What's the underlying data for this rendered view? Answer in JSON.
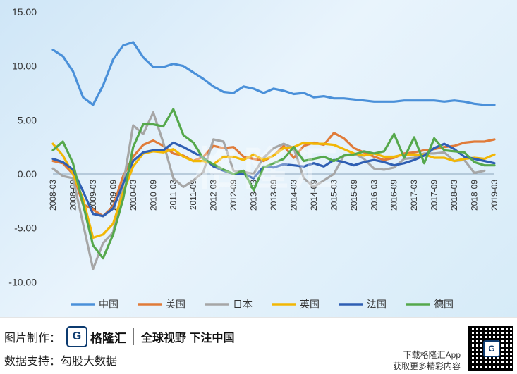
{
  "chart_data": {
    "type": "line",
    "ylim": [
      -10,
      15
    ],
    "yticks": [
      "15.00",
      "10.00",
      "5.00",
      "0.00",
      "-5.00",
      "-10.00"
    ],
    "x": [
      "2008-03",
      "2008-06",
      "2008-09",
      "2008-12",
      "2009-03",
      "2009-06",
      "2009-09",
      "2009-12",
      "2010-03",
      "2010-06",
      "2010-09",
      "2010-12",
      "2011-03",
      "2011-06",
      "2011-09",
      "2011-12",
      "2012-03",
      "2012-06",
      "2012-09",
      "2012-12",
      "2013-03",
      "2013-06",
      "2013-09",
      "2013-12",
      "2014-03",
      "2014-06",
      "2014-09",
      "2014-12",
      "2015-03",
      "2015-06",
      "2015-09",
      "2015-12",
      "2016-03",
      "2016-06",
      "2016-09",
      "2016-12",
      "2017-03",
      "2017-06",
      "2017-09",
      "2017-12",
      "2018-03",
      "2018-06",
      "2018-09",
      "2018-12",
      "2019-03"
    ],
    "xticks": [
      "2008-03",
      "2008-09",
      "2009-03",
      "2009-09",
      "2010-03",
      "2010-09",
      "2011-03",
      "2011-09",
      "2012-03",
      "2012-09",
      "2013-03",
      "2013-09",
      "2014-03",
      "2014-09",
      "2015-03",
      "2015-09",
      "2016-03",
      "2016-09",
      "2017-03",
      "2017-09",
      "2018-03",
      "2018-09",
      "2019-03"
    ],
    "grid": false,
    "legend_position": "bottom",
    "series": [
      {
        "name": "中国",
        "color": "#4a90d9",
        "values": [
          11.5,
          10.9,
          9.5,
          7.1,
          6.4,
          8.2,
          10.6,
          11.9,
          12.2,
          10.8,
          9.9,
          9.9,
          10.2,
          10.0,
          9.4,
          8.8,
          8.1,
          7.6,
          7.5,
          8.1,
          7.9,
          7.5,
          7.9,
          7.7,
          7.4,
          7.5,
          7.1,
          7.2,
          7.0,
          7.0,
          6.9,
          6.8,
          6.7,
          6.7,
          6.7,
          6.8,
          6.8,
          6.8,
          6.8,
          6.7,
          6.8,
          6.7,
          6.5,
          6.4,
          6.4
        ]
      },
      {
        "name": "美国",
        "color": "#e07b39",
        "values": [
          1.2,
          1.0,
          0.0,
          -2.8,
          -3.3,
          -3.9,
          -3.0,
          -0.2,
          1.6,
          2.7,
          3.1,
          2.6,
          1.9,
          1.7,
          1.2,
          1.6,
          2.6,
          2.4,
          2.5,
          1.6,
          1.4,
          1.2,
          1.7,
          2.6,
          1.5,
          2.6,
          2.9,
          2.7,
          3.8,
          3.3,
          2.4,
          2.0,
          1.6,
          1.3,
          1.5,
          1.9,
          2.0,
          2.2,
          2.3,
          2.5,
          2.6,
          2.9,
          3.0,
          3.0,
          3.2
        ]
      },
      {
        "name": "日本",
        "color": "#a6a6a6",
        "values": [
          0.5,
          -0.2,
          -0.4,
          -4.6,
          -8.8,
          -6.4,
          -5.4,
          -1.0,
          4.5,
          3.7,
          5.7,
          2.9,
          -0.4,
          -1.2,
          -0.6,
          0.2,
          3.2,
          3.0,
          0.3,
          0.2,
          0.0,
          1.5,
          2.4,
          2.8,
          2.4,
          -0.4,
          -1.2,
          -0.6,
          0.0,
          1.7,
          1.9,
          1.4,
          0.5,
          0.4,
          0.6,
          1.4,
          1.5,
          1.9,
          1.9,
          2.0,
          1.2,
          1.3,
          0.1,
          0.3,
          null
        ]
      },
      {
        "name": "英国",
        "color": "#f2b705",
        "values": [
          2.8,
          1.7,
          0.0,
          -2.3,
          -5.9,
          -5.6,
          -4.6,
          -1.7,
          0.7,
          1.9,
          2.1,
          2.0,
          2.3,
          1.6,
          1.2,
          1.2,
          0.9,
          1.6,
          1.6,
          1.3,
          1.8,
          1.3,
          1.7,
          2.4,
          2.5,
          2.9,
          2.8,
          2.8,
          2.7,
          2.3,
          1.9,
          1.7,
          1.9,
          1.6,
          1.6,
          1.8,
          1.8,
          1.8,
          1.5,
          1.5,
          1.2,
          1.4,
          1.5,
          1.4,
          1.8
        ]
      },
      {
        "name": "法国",
        "color": "#2f5fb3",
        "values": [
          1.4,
          1.1,
          0.4,
          -1.6,
          -3.7,
          -3.9,
          -3.2,
          -0.9,
          1.2,
          2.0,
          2.2,
          2.2,
          2.9,
          2.5,
          2.0,
          1.5,
          0.7,
          0.3,
          0.0,
          0.0,
          -0.4,
          0.7,
          0.6,
          0.9,
          0.8,
          0.7,
          1.0,
          0.7,
          1.3,
          1.1,
          0.8,
          1.1,
          1.3,
          1.1,
          0.8,
          1.0,
          1.3,
          1.7,
          2.4,
          2.8,
          2.3,
          1.6,
          1.4,
          1.2,
          1.0
        ]
      },
      {
        "name": "德国",
        "color": "#55a84c",
        "values": [
          2.2,
          3.0,
          1.0,
          -2.8,
          -6.6,
          -7.8,
          -5.6,
          -2.3,
          2.5,
          4.6,
          4.6,
          4.4,
          6.0,
          3.6,
          2.9,
          1.4,
          0.9,
          0.4,
          0.0,
          0.3,
          -1.5,
          0.6,
          1.0,
          1.4,
          2.5,
          1.2,
          1.4,
          1.6,
          1.2,
          1.7,
          1.8,
          2.1,
          1.9,
          2.1,
          3.7,
          1.5,
          3.4,
          1.0,
          3.3,
          2.2,
          2.1,
          2.0,
          1.1,
          0.8,
          0.8
        ]
      }
    ]
  },
  "watermark": "格隆汇",
  "footer": {
    "credit_label": "图片制作：",
    "logo_glyph": "G",
    "brand": "格隆汇",
    "slogan": "全球视野 下注中国",
    "source_label": "数据支持：",
    "source": "勾股大数据",
    "app_line_1": "下载格隆汇App",
    "app_line_2": "获取更多精彩内容"
  }
}
